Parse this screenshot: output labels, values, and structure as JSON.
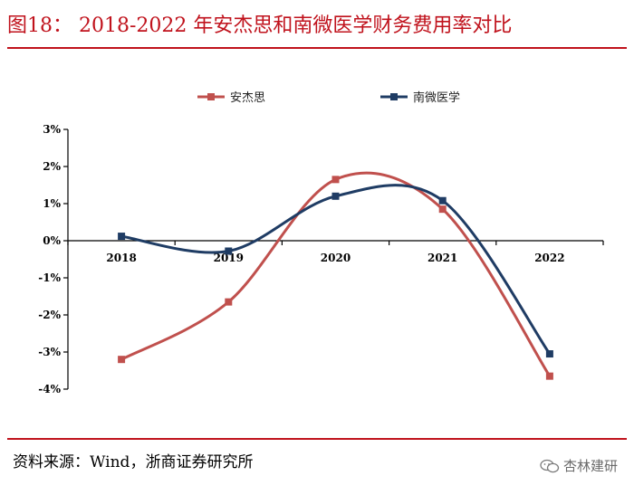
{
  "header": {
    "title": "图18： 2018-2022 年安杰思和南微医学财务费用率对比"
  },
  "footer": {
    "source": "资料来源：Wind，浙商证券研究所",
    "watermark": "杏林建研",
    "watermark_icon": "wechat-icon"
  },
  "colors": {
    "accent": "#c0121c",
    "series_anjiesi": "#c0504d",
    "series_nanwei": "#1f3c64"
  },
  "chart_data": {
    "type": "line",
    "title": "",
    "xlabel": "",
    "ylabel": "",
    "categories": [
      "2018",
      "2019",
      "2020",
      "2021",
      "2022"
    ],
    "series": [
      {
        "name": "安杰思",
        "values": [
          -3.2,
          -1.65,
          1.65,
          0.85,
          -3.65
        ]
      },
      {
        "name": "南微医学",
        "values": [
          0.12,
          -0.28,
          1.2,
          1.08,
          -3.05
        ]
      }
    ],
    "ylim": [
      -4,
      3
    ],
    "yticks": [
      3,
      2,
      1,
      0,
      -1,
      -2,
      -3,
      -4
    ],
    "ytick_labels": [
      "3%",
      "2%",
      "1%",
      "0%",
      "-1%",
      "-2%",
      "-3%",
      "-4%"
    ],
    "smooth": true,
    "legend_position": "top",
    "grid": false
  }
}
